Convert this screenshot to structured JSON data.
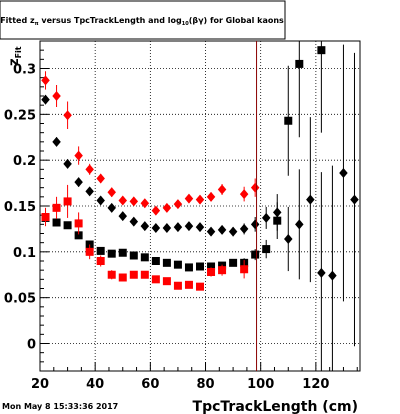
{
  "chart_data": {
    "type": "scatter",
    "title": "Fitted z versus TpcTrackLength and log10(βγ) for Global kaons",
    "title_parts": {
      "pre": "Fitted ",
      "z": "z",
      "z_sub": "π",
      "mid": " versus TpcTrackLength and log",
      "log_sub": "10",
      "post": "(βγ) for Global kaons"
    },
    "xlabel": "TpcTrackLength (cm)",
    "ylabel": "z",
    "ylabel_sub": "Fit",
    "xlim": [
      20,
      136
    ],
    "ylim": [
      -0.03,
      0.33
    ],
    "xticks": [
      20,
      40,
      60,
      80,
      100,
      120
    ],
    "yticks": [
      0,
      0.05,
      0.1,
      0.15,
      0.2,
      0.25,
      0.3
    ],
    "ytick_labels": [
      "0",
      "0.05",
      "0.1",
      "0.15",
      "0.2",
      "0.25",
      "0.3"
    ],
    "grid": true,
    "timestamp": "Mon May  8 15:33:36 2017",
    "vline_x": 98.5,
    "series": [
      {
        "marker": "diamond",
        "color": "#000000",
        "points": [
          {
            "x": 22,
            "y": 0.266,
            "e": 0.005
          },
          {
            "x": 26,
            "y": 0.22,
            "e": 0.005
          },
          {
            "x": 30,
            "y": 0.196,
            "e": 0.005
          },
          {
            "x": 34,
            "y": 0.176,
            "e": 0.005
          },
          {
            "x": 38,
            "y": 0.166,
            "e": 0.004
          },
          {
            "x": 42,
            "y": 0.156,
            "e": 0.004
          },
          {
            "x": 46,
            "y": 0.148,
            "e": 0.004
          },
          {
            "x": 50,
            "y": 0.139,
            "e": 0.004
          },
          {
            "x": 54,
            "y": 0.133,
            "e": 0.004
          },
          {
            "x": 58,
            "y": 0.128,
            "e": 0.004
          },
          {
            "x": 62,
            "y": 0.126,
            "e": 0.004
          },
          {
            "x": 66,
            "y": 0.126,
            "e": 0.004
          },
          {
            "x": 70,
            "y": 0.127,
            "e": 0.004
          },
          {
            "x": 74,
            "y": 0.128,
            "e": 0.004
          },
          {
            "x": 78,
            "y": 0.127,
            "e": 0.004
          },
          {
            "x": 82,
            "y": 0.122,
            "e": 0.004
          },
          {
            "x": 86,
            "y": 0.124,
            "e": 0.004
          },
          {
            "x": 90,
            "y": 0.122,
            "e": 0.005
          },
          {
            "x": 94,
            "y": 0.125,
            "e": 0.006
          },
          {
            "x": 98,
            "y": 0.13,
            "e": 0.008
          },
          {
            "x": 102,
            "y": 0.137,
            "e": 0.012
          },
          {
            "x": 106,
            "y": 0.143,
            "e": 0.02
          },
          {
            "x": 110,
            "y": 0.114,
            "e": 0.035
          },
          {
            "x": 114,
            "y": 0.13,
            "e": 0.06
          },
          {
            "x": 118,
            "y": 0.157,
            "e": 0.09
          },
          {
            "x": 122,
            "y": 0.077,
            "e": 0.11
          },
          {
            "x": 126,
            "y": 0.074,
            "e": 0.12
          },
          {
            "x": 130,
            "y": 0.186,
            "e": 0.14
          },
          {
            "x": 134,
            "y": 0.157,
            "e": 0.16
          }
        ]
      },
      {
        "marker": "square",
        "color": "#000000",
        "points": [
          {
            "x": 22,
            "y": 0.137,
            "e": 0.004
          },
          {
            "x": 26,
            "y": 0.132,
            "e": 0.004
          },
          {
            "x": 30,
            "y": 0.129,
            "e": 0.004
          },
          {
            "x": 34,
            "y": 0.118,
            "e": 0.004
          },
          {
            "x": 38,
            "y": 0.108,
            "e": 0.003
          },
          {
            "x": 42,
            "y": 0.101,
            "e": 0.003
          },
          {
            "x": 46,
            "y": 0.098,
            "e": 0.003
          },
          {
            "x": 50,
            "y": 0.099,
            "e": 0.003
          },
          {
            "x": 54,
            "y": 0.096,
            "e": 0.003
          },
          {
            "x": 58,
            "y": 0.094,
            "e": 0.003
          },
          {
            "x": 62,
            "y": 0.09,
            "e": 0.003
          },
          {
            "x": 66,
            "y": 0.088,
            "e": 0.003
          },
          {
            "x": 70,
            "y": 0.086,
            "e": 0.003
          },
          {
            "x": 74,
            "y": 0.083,
            "e": 0.003
          },
          {
            "x": 78,
            "y": 0.084,
            "e": 0.003
          },
          {
            "x": 82,
            "y": 0.084,
            "e": 0.003
          },
          {
            "x": 86,
            "y": 0.085,
            "e": 0.003
          },
          {
            "x": 90,
            "y": 0.088,
            "e": 0.004
          },
          {
            "x": 94,
            "y": 0.088,
            "e": 0.005
          },
          {
            "x": 98,
            "y": 0.097,
            "e": 0.006
          },
          {
            "x": 102,
            "y": 0.103,
            "e": 0.01
          },
          {
            "x": 106,
            "y": 0.134,
            "e": 0.02
          },
          {
            "x": 110,
            "y": 0.243,
            "e": 0.06
          },
          {
            "x": 114,
            "y": 0.305,
            "e": 0.08
          },
          {
            "x": 122,
            "y": 0.32,
            "e": 0.09
          }
        ]
      },
      {
        "marker": "diamond",
        "color": "#ff0000",
        "points": [
          {
            "x": 22,
            "y": 0.287,
            "e": 0.01
          },
          {
            "x": 26,
            "y": 0.27,
            "e": 0.012
          },
          {
            "x": 30,
            "y": 0.249,
            "e": 0.015
          },
          {
            "x": 34,
            "y": 0.205,
            "e": 0.01
          },
          {
            "x": 38,
            "y": 0.19,
            "e": 0.006
          },
          {
            "x": 42,
            "y": 0.18,
            "e": 0.005
          },
          {
            "x": 46,
            "y": 0.165,
            "e": 0.005
          },
          {
            "x": 50,
            "y": 0.156,
            "e": 0.004
          },
          {
            "x": 54,
            "y": 0.155,
            "e": 0.004
          },
          {
            "x": 58,
            "y": 0.153,
            "e": 0.004
          },
          {
            "x": 62,
            "y": 0.145,
            "e": 0.004
          },
          {
            "x": 66,
            "y": 0.148,
            "e": 0.004
          },
          {
            "x": 70,
            "y": 0.152,
            "e": 0.004
          },
          {
            "x": 74,
            "y": 0.158,
            "e": 0.004
          },
          {
            "x": 78,
            "y": 0.157,
            "e": 0.004
          },
          {
            "x": 82,
            "y": 0.16,
            "e": 0.005
          },
          {
            "x": 86,
            "y": 0.168,
            "e": 0.006
          },
          {
            "x": 94,
            "y": 0.163,
            "e": 0.008
          },
          {
            "x": 98,
            "y": 0.17,
            "e": 0.01
          }
        ]
      },
      {
        "marker": "square",
        "color": "#ff0000",
        "points": [
          {
            "x": 22,
            "y": 0.138,
            "e": 0.01
          },
          {
            "x": 26,
            "y": 0.148,
            "e": 0.012
          },
          {
            "x": 30,
            "y": 0.155,
            "e": 0.018
          },
          {
            "x": 34,
            "y": 0.131,
            "e": 0.012
          },
          {
            "x": 38,
            "y": 0.1,
            "e": 0.008
          },
          {
            "x": 42,
            "y": 0.09,
            "e": 0.006
          },
          {
            "x": 46,
            "y": 0.075,
            "e": 0.005
          },
          {
            "x": 50,
            "y": 0.072,
            "e": 0.004
          },
          {
            "x": 54,
            "y": 0.075,
            "e": 0.004
          },
          {
            "x": 58,
            "y": 0.075,
            "e": 0.004
          },
          {
            "x": 62,
            "y": 0.07,
            "e": 0.004
          },
          {
            "x": 66,
            "y": 0.068,
            "e": 0.004
          },
          {
            "x": 70,
            "y": 0.063,
            "e": 0.004
          },
          {
            "x": 74,
            "y": 0.064,
            "e": 0.004
          },
          {
            "x": 78,
            "y": 0.062,
            "e": 0.004
          },
          {
            "x": 82,
            "y": 0.078,
            "e": 0.005
          },
          {
            "x": 86,
            "y": 0.08,
            "e": 0.006
          },
          {
            "x": 94,
            "y": 0.081,
            "e": 0.01
          }
        ]
      }
    ]
  }
}
